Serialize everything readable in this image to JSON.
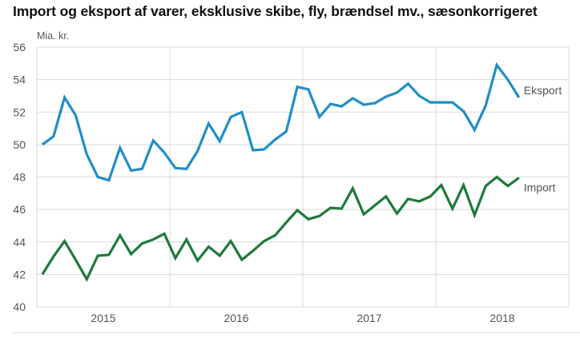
{
  "chart_data": {
    "type": "line",
    "title": "Import og eksport af varer, eksklusive skibe, fly, brændsel mv., sæsonkorrigeret",
    "ylabel": "Mia. kr.",
    "xlabel": "",
    "ylim": [
      40,
      56
    ],
    "yticks": [
      40,
      42,
      44,
      46,
      48,
      50,
      52,
      54,
      56
    ],
    "xtick_labels": [
      "2015",
      "2016",
      "2017",
      "2018"
    ],
    "grid": true,
    "legend": "inline-right",
    "x": [
      "2015-01",
      "2015-02",
      "2015-03",
      "2015-04",
      "2015-05",
      "2015-06",
      "2015-07",
      "2015-08",
      "2015-09",
      "2015-10",
      "2015-11",
      "2015-12",
      "2016-01",
      "2016-02",
      "2016-03",
      "2016-04",
      "2016-05",
      "2016-06",
      "2016-07",
      "2016-08",
      "2016-09",
      "2016-10",
      "2016-11",
      "2016-12",
      "2017-01",
      "2017-02",
      "2017-03",
      "2017-04",
      "2017-05",
      "2017-06",
      "2017-07",
      "2017-08",
      "2017-09",
      "2017-10",
      "2017-11",
      "2017-12",
      "2018-01",
      "2018-02",
      "2018-03",
      "2018-04",
      "2018-05",
      "2018-06",
      "2018-07",
      "2018-08"
    ],
    "series": [
      {
        "name": "Eksport",
        "color": "#1f8fc8",
        "values": [
          50.0,
          50.5,
          52.9,
          51.8,
          49.4,
          48.0,
          47.8,
          49.8,
          48.4,
          48.5,
          50.25,
          49.5,
          48.55,
          48.5,
          49.6,
          51.3,
          50.2,
          51.7,
          52.0,
          49.65,
          49.7,
          50.3,
          50.8,
          53.55,
          53.4,
          51.7,
          52.5,
          52.35,
          52.85,
          52.45,
          52.55,
          52.95,
          53.2,
          53.75,
          53.0,
          52.6,
          52.6,
          52.6,
          52.05,
          50.9,
          52.4,
          54.9,
          54.0,
          52.9
        ]
      },
      {
        "name": "Import",
        "color": "#1e7a3a",
        "values": [
          42.0,
          43.1,
          44.05,
          42.9,
          41.7,
          43.15,
          43.2,
          44.4,
          43.25,
          43.9,
          44.15,
          44.5,
          43.0,
          44.15,
          42.85,
          43.7,
          43.15,
          44.05,
          42.9,
          43.45,
          44.05,
          44.4,
          45.2,
          45.95,
          45.4,
          45.6,
          46.1,
          46.05,
          47.3,
          45.7,
          46.25,
          46.8,
          45.75,
          46.65,
          46.5,
          46.8,
          47.5,
          46.05,
          47.5,
          45.65,
          47.45,
          48.0,
          47.45,
          47.95
        ]
      }
    ]
  }
}
